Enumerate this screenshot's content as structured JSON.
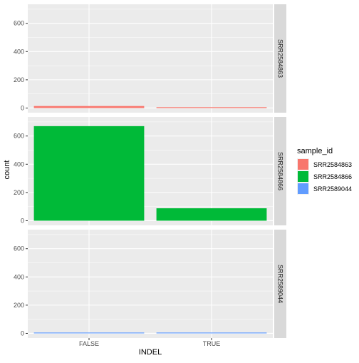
{
  "chart_data": {
    "type": "bar",
    "categories": [
      "FALSE",
      "TRUE"
    ],
    "xlabel": "INDEL",
    "ylabel": "count",
    "ylim": [
      0,
      700
    ],
    "yticks": [
      0,
      200,
      400,
      600
    ],
    "grid": true,
    "legend": {
      "title": "sample_id",
      "position": "right",
      "entries": [
        {
          "label": "SRR2584863",
          "color": "#F8766D"
        },
        {
          "label": "SRR2584866",
          "color": "#00BA38"
        },
        {
          "label": "SRR2589044",
          "color": "#619CFF"
        }
      ]
    },
    "facets": [
      {
        "strip": "SRR2584863",
        "color": "#F8766D",
        "values": [
          14,
          6
        ]
      },
      {
        "strip": "SRR2584866",
        "color": "#00BA38",
        "values": [
          670,
          88
        ]
      },
      {
        "strip": "SRR2589044",
        "color": "#619CFF",
        "values": [
          1,
          1
        ]
      }
    ]
  }
}
